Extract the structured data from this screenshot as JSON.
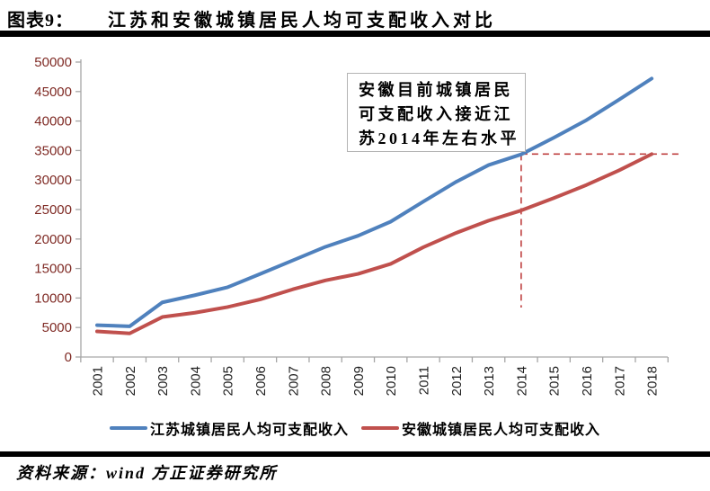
{
  "title": {
    "prefix": "图表9：",
    "text": "江苏和安徽城镇居民人均可支配收入对比"
  },
  "annotation": {
    "lines": [
      "安徽目前城镇居民",
      "可支配收入接近江",
      "苏2014年左右水平"
    ]
  },
  "footer": {
    "source": "资料来源：wind 方正证券研究所"
  },
  "colors": {
    "jiangsu_line": "#4F81BD",
    "anhui_line": "#C0504D",
    "dashed_reference": "#BF4040",
    "axis": "#A6A6A6",
    "y_tick_label": "#7F2A24",
    "x_tick_label": "#1F1F1F"
  },
  "chart_data": {
    "type": "line",
    "title": "江苏和安徽城镇居民人均可支配收入对比",
    "xlabel": "",
    "ylabel": "",
    "x": [
      "2001",
      "2002",
      "2003",
      "2004",
      "2005",
      "2006",
      "2007",
      "2008",
      "2009",
      "2010",
      "2011",
      "2012",
      "2013",
      "2014",
      "2015",
      "2016",
      "2017",
      "2018"
    ],
    "series": [
      {
        "name": "江苏城镇居民人均可支配收入",
        "color": "#4F81BD",
        "values": [
          5400,
          5200,
          9262,
          10482,
          11825,
          14084,
          16378,
          18680,
          20552,
          22944,
          26341,
          29677,
          32538,
          34346,
          37173,
          40152,
          43622,
          47200
        ]
      },
      {
        "name": "安徽城镇居民人均可支配收入",
        "color": "#C0504D",
        "values": [
          4350,
          4000,
          6778,
          7511,
          8471,
          9771,
          11474,
          12990,
          14086,
          15788,
          18606,
          21024,
          23114,
          24839,
          26936,
          29156,
          31640,
          34393
        ]
      }
    ],
    "ylim": [
      0,
      50000
    ],
    "ytick_step": 5000,
    "y_tick_labels": [
      "0",
      "5000",
      "10000",
      "15000",
      "20000",
      "25000",
      "30000",
      "35000",
      "40000",
      "45000",
      "50000"
    ],
    "grid": false,
    "legend_position": "bottom",
    "dashed_reference": {
      "vertical_at_year": "2014",
      "level": 34400,
      "meaning": "安徽2018年水平 ≈ 江苏2014年水平"
    }
  }
}
